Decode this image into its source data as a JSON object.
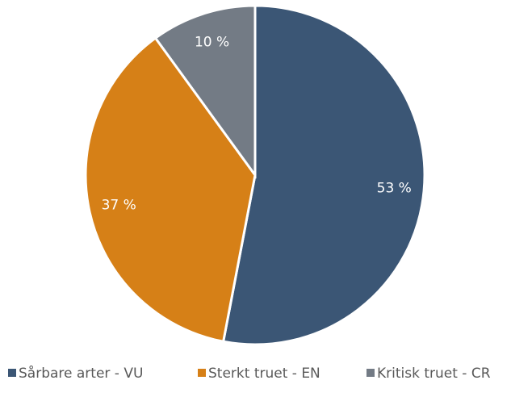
{
  "chart_data": {
    "type": "pie",
    "categories": [
      "Sårbare arter - VU",
      "Sterkt truet - EN",
      "Kritisk truet - CR"
    ],
    "values": [
      53,
      37,
      10
    ],
    "value_labels": [
      "53 %",
      "37 %",
      "10 %"
    ],
    "colors": [
      "#3b5675",
      "#d68017",
      "#737b85"
    ],
    "legend": "bottom"
  }
}
